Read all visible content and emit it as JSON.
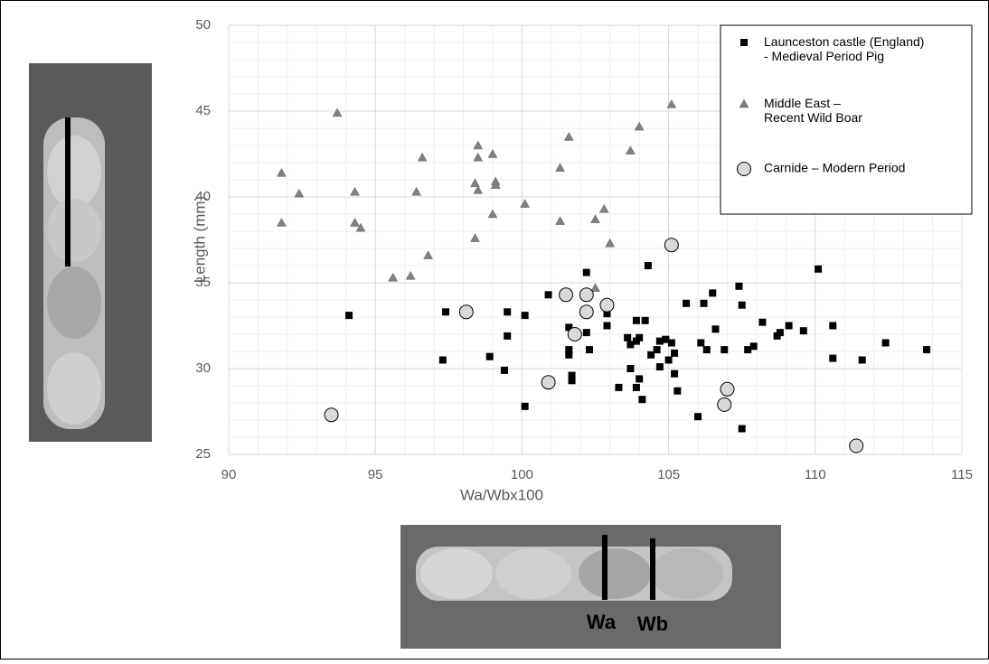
{
  "chart_data": {
    "type": "scatter",
    "xlabel": "Wa/Wbx100",
    "ylabel": "Length (mm)",
    "xlim": [
      90,
      115
    ],
    "xticks": [
      90,
      95,
      100,
      105,
      110,
      115
    ],
    "ylim": [
      25,
      50
    ],
    "yticks": [
      25,
      30,
      35,
      40,
      45,
      50
    ],
    "grid": true,
    "minor_grid": true,
    "legend": "upper right",
    "annotations": [
      "Wa",
      "Wb"
    ],
    "series": [
      {
        "name": "Launceston castle (England)\n- Medieval Period Pig",
        "color": "#000000",
        "marker": "square",
        "x": [
          94.1,
          97.3,
          97.4,
          98.9,
          99.5,
          99.5,
          99.4,
          100.1,
          100.1,
          100.9,
          101.6,
          101.6,
          101.6,
          101.7,
          101.7,
          102.2,
          102.2,
          102.3,
          102.9,
          102.9,
          103.3,
          103.6,
          103.7,
          103.7,
          103.9,
          103.9,
          103.9,
          104.0,
          104.0,
          104.1,
          104.2,
          104.3,
          104.4,
          104.6,
          104.7,
          104.7,
          104.9,
          105.0,
          105.1,
          105.2,
          105.2,
          105.3,
          105.6,
          106.1,
          106.0,
          106.2,
          106.3,
          106.5,
          106.6,
          106.9,
          107.4,
          107.5,
          107.5,
          107.7,
          107.9,
          108.2,
          108.7,
          108.8,
          109.1,
          109.6,
          110.1,
          110.6,
          110.6,
          111.6,
          112.4,
          113.8
        ],
        "y": [
          33.1,
          30.5,
          33.3,
          30.7,
          33.3,
          31.9,
          29.9,
          33.1,
          27.8,
          34.3,
          32.4,
          31.1,
          30.8,
          29.6,
          29.3,
          35.6,
          32.1,
          31.1,
          33.2,
          32.5,
          28.9,
          31.8,
          31.4,
          30.0,
          32.8,
          28.9,
          31.6,
          29.4,
          31.8,
          28.2,
          32.8,
          36.0,
          30.8,
          31.1,
          31.6,
          30.1,
          31.7,
          30.5,
          31.5,
          29.7,
          30.9,
          28.7,
          33.8,
          31.5,
          27.2,
          33.8,
          31.1,
          34.4,
          32.3,
          31.1,
          34.8,
          33.7,
          26.5,
          31.1,
          31.3,
          32.7,
          31.9,
          32.1,
          32.5,
          32.2,
          35.8,
          32.5,
          30.6,
          30.5,
          31.5,
          31.1
        ]
      },
      {
        "name": "Middle East –\nRecent Wild Boar",
        "color": "#808080",
        "marker": "triangle",
        "x": [
          91.8,
          91.8,
          92.4,
          93.7,
          94.3,
          94.3,
          94.5,
          95.6,
          96.2,
          96.4,
          96.6,
          96.8,
          98.4,
          98.4,
          98.5,
          98.5,
          98.5,
          99.0,
          99.0,
          99.1,
          99.1,
          100.1,
          101.3,
          101.3,
          101.6,
          102.5,
          102.5,
          102.8,
          103.0,
          103.7,
          104.0,
          105.1
        ],
        "y": [
          41.4,
          38.5,
          40.2,
          44.9,
          40.3,
          38.5,
          38.2,
          35.3,
          35.4,
          40.3,
          42.3,
          36.6,
          37.6,
          40.8,
          43.0,
          42.3,
          40.4,
          39.0,
          42.5,
          40.9,
          40.7,
          39.6,
          38.6,
          41.7,
          43.5,
          38.7,
          34.7,
          39.3,
          37.3,
          42.7,
          44.1,
          45.4
        ]
      },
      {
        "name": "Carnide – Modern Period",
        "color": "#d9d9d9",
        "marker": "circle",
        "x": [
          93.5,
          98.1,
          100.9,
          101.5,
          101.8,
          102.2,
          102.2,
          102.9,
          105.1,
          107.0,
          106.9,
          111.4
        ],
        "y": [
          27.3,
          33.3,
          29.2,
          34.3,
          32.0,
          34.3,
          33.3,
          33.7,
          37.2,
          28.8,
          27.9,
          25.5
        ]
      }
    ]
  }
}
